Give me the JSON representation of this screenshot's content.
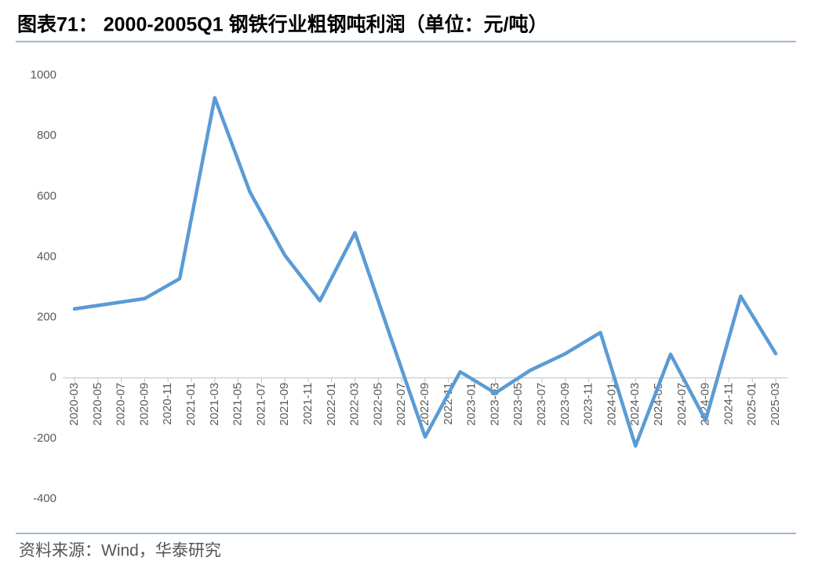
{
  "chart_data": {
    "type": "line",
    "title": "图表71：  2000-2005Q1 钢铁行业粗钢吨利润（单位：元/吨）",
    "source": "资料来源：Wind，华泰研究",
    "x": [
      "2020-03",
      "2020-06",
      "2020-09",
      "2020-12",
      "2021-03",
      "2021-06",
      "2021-09",
      "2021-12",
      "2022-03",
      "2022-06",
      "2022-09",
      "2022-12",
      "2023-03",
      "2023-06",
      "2023-09",
      "2023-12",
      "2024-03",
      "2024-06",
      "2024-09",
      "2024-12",
      "2025-03"
    ],
    "series": [
      {
        "name": "粗钢吨利润",
        "color": "#5b9bd5",
        "values": [
          228,
          245,
          262,
          328,
          926,
          615,
          405,
          255,
          480,
          140,
          -195,
          20,
          -50,
          25,
          80,
          150,
          -225,
          78,
          -140,
          270,
          80
        ]
      }
    ],
    "xticks": [
      "2020-03",
      "2020-05",
      "2020-07",
      "2020-09",
      "2020-11",
      "2021-01",
      "2021-03",
      "2021-05",
      "2021-07",
      "2021-09",
      "2021-11",
      "2022-01",
      "2022-03",
      "2022-05",
      "2022-07",
      "2022-09",
      "2022-11",
      "2023-01",
      "2023-03",
      "2023-05",
      "2023-07",
      "2023-09",
      "2023-11",
      "2024-01",
      "2024-03",
      "2024-05",
      "2024-07",
      "2024-09",
      "2024-11",
      "2025-01",
      "2025-03"
    ],
    "ylim": [
      -400,
      1000
    ],
    "yticks": [
      -400,
      -200,
      0,
      200,
      400,
      600,
      800,
      1000
    ]
  }
}
